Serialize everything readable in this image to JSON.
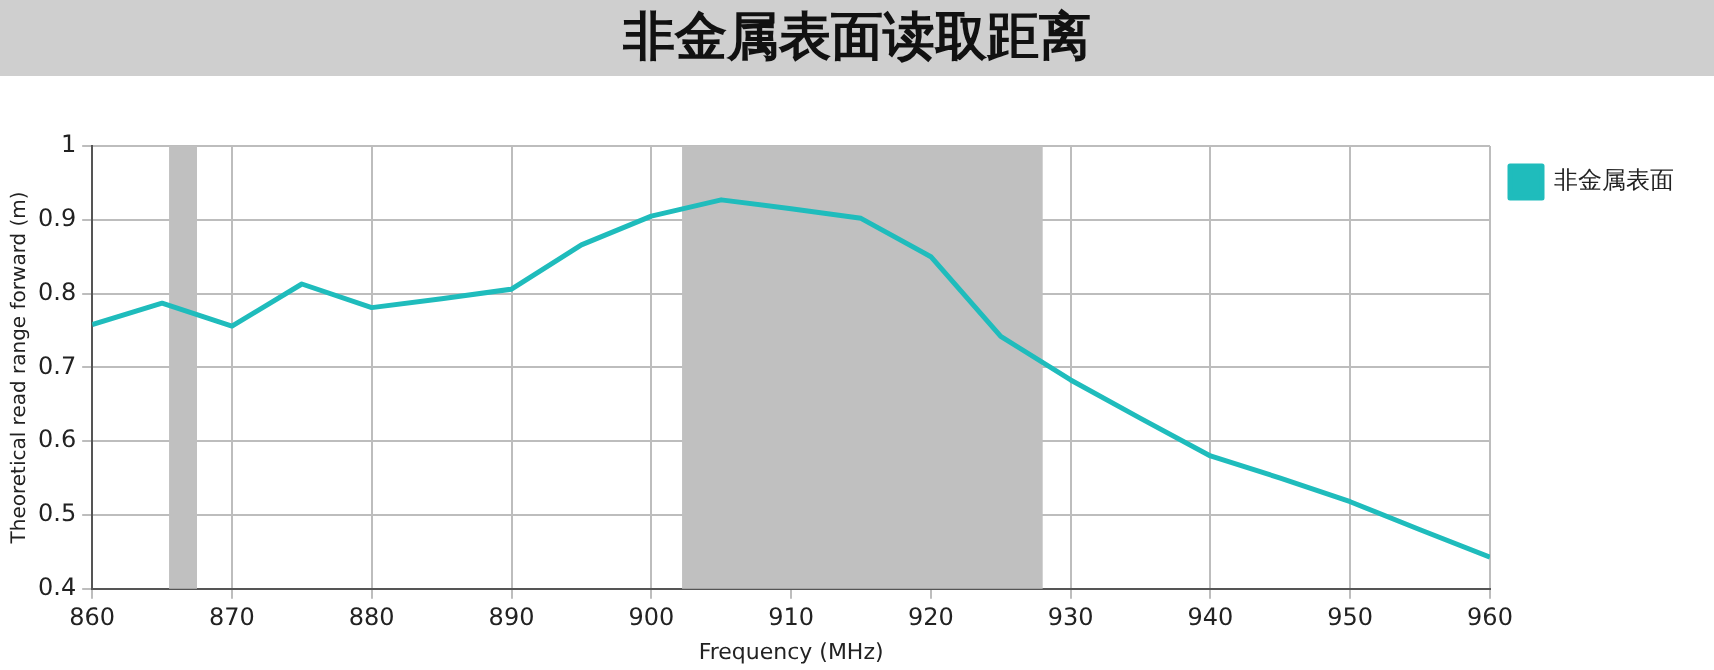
{
  "chart_data": {
    "type": "line",
    "title": "非金属表面读取距离",
    "xlabel": "Frequency (MHz)",
    "ylabel": "Theoretical read range forward (m)",
    "x": [
      860,
      865,
      870,
      875,
      880,
      885,
      890,
      895,
      900,
      905,
      910,
      915,
      920,
      925,
      930,
      935,
      940,
      945,
      950,
      955,
      960
    ],
    "series": [
      {
        "name": "非金属表面",
        "color": "#1fbcbc",
        "values": [
          0.758,
          0.787,
          0.756,
          0.813,
          0.781,
          0.793,
          0.806,
          0.866,
          0.905,
          0.927,
          0.915,
          0.902,
          0.85,
          0.742,
          0.683,
          0.631,
          0.58,
          0.55,
          0.518,
          0.48,
          0.443
        ]
      }
    ],
    "xlim": [
      860,
      960
    ],
    "xticks": [
      860,
      870,
      880,
      890,
      900,
      910,
      920,
      930,
      940,
      950,
      960
    ],
    "ylim": [
      0.4,
      1
    ],
    "yticks": [
      0.4,
      0.5,
      0.6,
      0.7,
      0.8,
      0.9,
      1
    ],
    "bands": [
      {
        "axis": "x",
        "from": 865.5,
        "to": 867.5,
        "color": "#c0c0c0"
      },
      {
        "axis": "x",
        "from": 902.2,
        "to": 928,
        "color": "#c0c0c0"
      }
    ],
    "grid": true,
    "legend": "top right",
    "marker": "none",
    "line_style": "solid"
  }
}
